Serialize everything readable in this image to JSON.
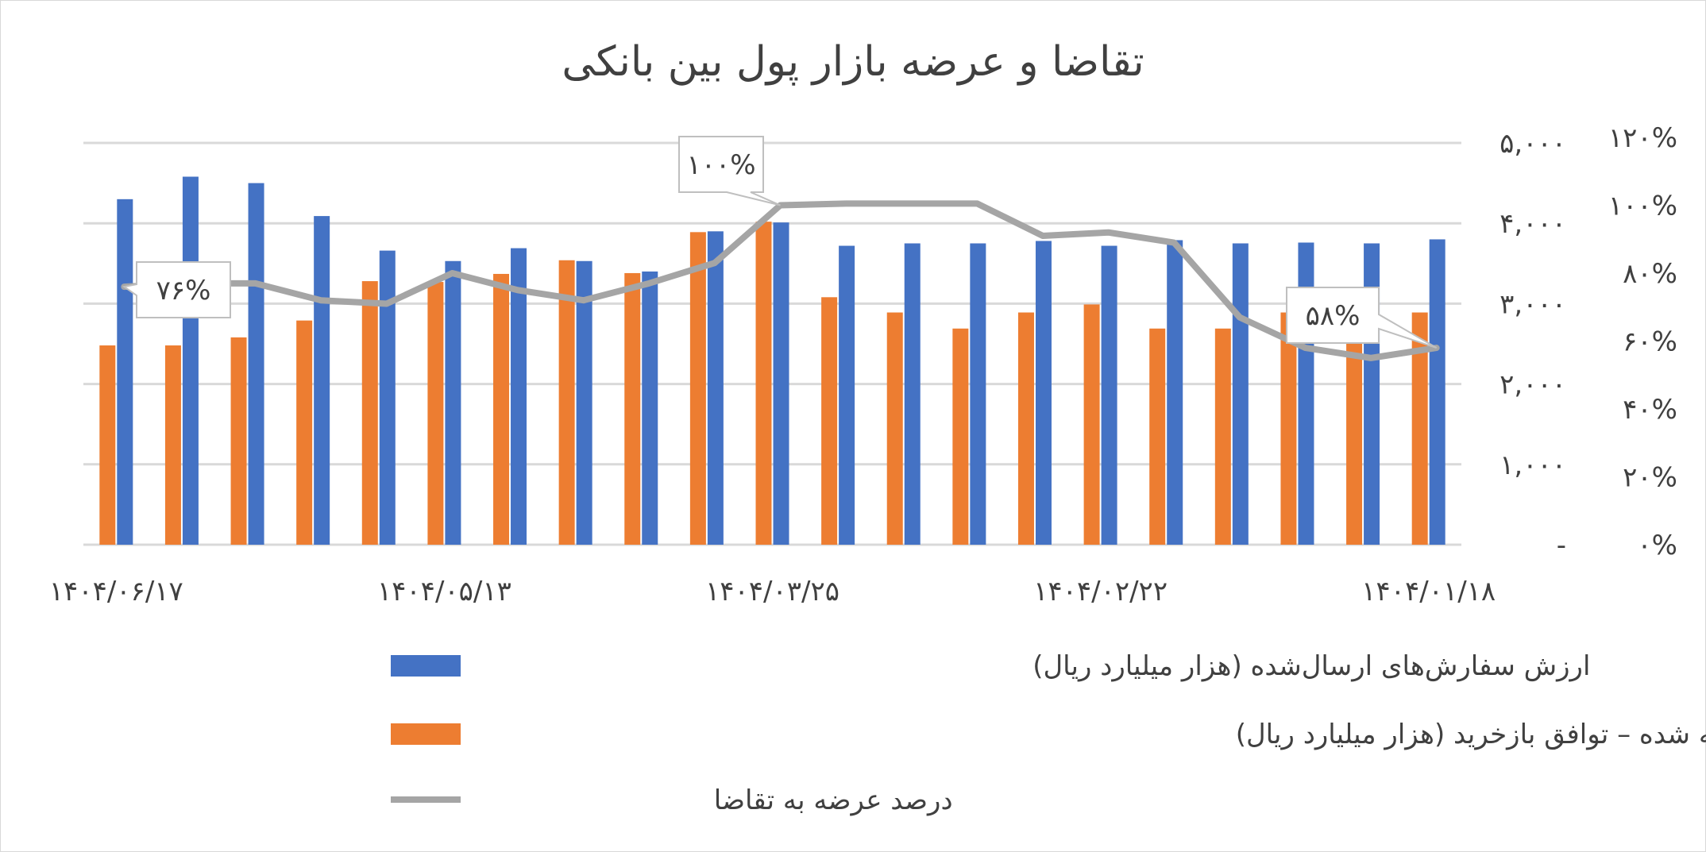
{
  "chart_data": {
    "type": "bar",
    "title": "تقاضا و عرضه بازار پول بین بانکی",
    "categories": [
      "۱۴۰۴/۰۶/۱۷",
      "",
      "",
      "",
      "",
      "۱۴۰۴/۰۵/۱۳",
      "",
      "",
      "",
      "",
      "۱۴۰۴/۰۳/۲۵",
      "",
      "",
      "",
      "",
      "۱۴۰۴/۰۲/۲۲",
      "",
      "",
      "",
      "",
      "۱۴۰۴/۰۱/۱۸"
    ],
    "series": [
      {
        "name": "ارزش سفارش‌های ارسال‌شده (هزار میلیارد ریال)",
        "kind": "bar",
        "axis": "left",
        "color": "#4472c4",
        "values": [
          4300,
          4580,
          4500,
          4090,
          3660,
          3530,
          3690,
          3530,
          3400,
          3900,
          4010,
          3720,
          3750,
          3750,
          3780,
          3720,
          3790,
          3750,
          3760,
          3750,
          3800
        ]
      },
      {
        "name": "ارزش سفارش‌های پذیرفته شده – توافق بازخرید (هزار میلیارد ریال)",
        "kind": "bar",
        "axis": "left",
        "color": "#ed7d31",
        "values": [
          2480,
          2480,
          2580,
          2790,
          3280,
          3270,
          3370,
          3540,
          3380,
          3890,
          4020,
          3080,
          2890,
          2690,
          2890,
          2990,
          2690,
          2690,
          2890,
          2690,
          2890
        ]
      },
      {
        "name": "درصد عرضه به تقاضا",
        "kind": "line",
        "axis": "right",
        "color": "#a5a5a5",
        "values": [
          76,
          77,
          77,
          72,
          71,
          80,
          75,
          72,
          77,
          83,
          100,
          100.5,
          100.5,
          100.5,
          91,
          92,
          89,
          67,
          58,
          55,
          58
        ]
      }
    ],
    "data_labels": [
      {
        "series": 2,
        "index": 0,
        "text": "۷۶%"
      },
      {
        "series": 2,
        "index": 10,
        "text": "۱۰۰%"
      },
      {
        "series": 2,
        "index": 20,
        "text": "۵۸%"
      }
    ],
    "left_axis": {
      "ticks": [
        "-",
        "۱,۰۰۰",
        "۲,۰۰۰",
        "۳,۰۰۰",
        "۴,۰۰۰",
        "۵,۰۰۰"
      ],
      "ylim": [
        0,
        5000
      ]
    },
    "right_axis": {
      "ticks": [
        "۰%",
        "۲۰%",
        "۴۰%",
        "۶۰%",
        "۸۰%",
        "۱۰۰%",
        "۱۲۰%"
      ],
      "ylim": [
        0,
        120
      ]
    },
    "grid": true,
    "legend_position": "bottom"
  }
}
